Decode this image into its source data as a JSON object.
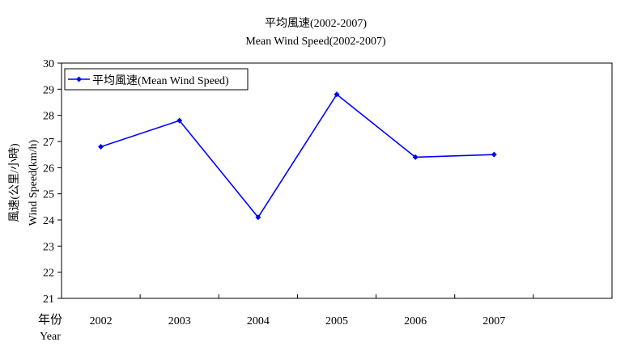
{
  "chart_data": {
    "type": "line",
    "title": "平均風速(2002-2007)",
    "subtitle": "Mean Wind Speed(2002-2007)",
    "xlabel": "年份",
    "xlabel_en": "Year",
    "ylabel": "風速(公里/小時)",
    "ylabel_en": "Wind Speed(km/h)",
    "categories": [
      "2002",
      "2003",
      "2004",
      "2005",
      "2006",
      "2007"
    ],
    "series": [
      {
        "name": "平均風速(Mean Wind Speed)",
        "values": [
          26.8,
          27.8,
          24.1,
          28.8,
          26.4,
          26.5
        ],
        "color": "#0000ff"
      }
    ],
    "ylim": [
      21,
      30
    ],
    "yticks": [
      21,
      22,
      23,
      24,
      25,
      26,
      27,
      28,
      29,
      30
    ],
    "grid": false,
    "legend": "top-left"
  }
}
